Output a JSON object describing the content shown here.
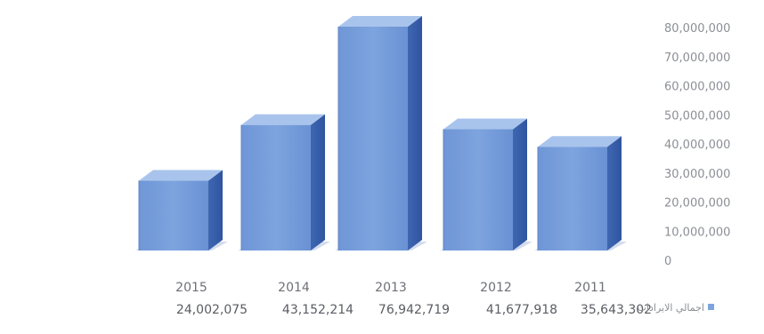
{
  "chart_data": {
    "type": "bar",
    "categories": [
      "2015",
      "2014",
      "2013",
      "2012",
      "2011"
    ],
    "series": [
      {
        "name": "اجمالي الايرادات",
        "values": [
          24002075,
          43152214,
          76942719,
          41677918,
          35643302
        ]
      }
    ],
    "value_labels": [
      "24,002,075",
      "43,152,214",
      "76,942,719",
      "41,677,918",
      "35,643,302"
    ],
    "y_ticks": [
      "0",
      "10,000,000",
      "20,000,000",
      "30,000,000",
      "40,000,000",
      "50,000,000",
      "60,000,000",
      "70,000,000",
      "80,000,000"
    ],
    "ylim": [
      0,
      80000000
    ],
    "y_axis_position": "right",
    "style": "3d-column",
    "grid": false,
    "legend": "bottom-left",
    "colors": {
      "bar_front": "#7da4de",
      "bar_side": "#3f67b1",
      "bar_top": "#a9c4ec"
    }
  }
}
